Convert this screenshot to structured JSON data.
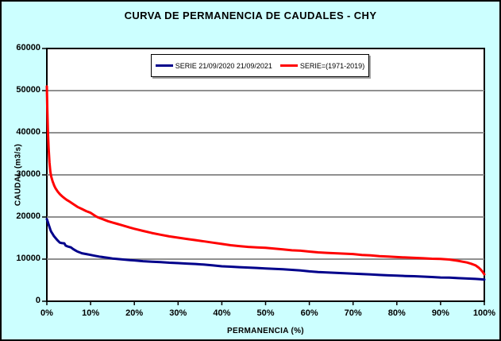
{
  "chart_data": {
    "type": "line",
    "title": "CURVA DE PERMANENCIA DE CAUDALES - CHY",
    "xlabel": "PERMANENCIA (%)",
    "ylabel": "CAUDAL (m3/s)",
    "xlim": [
      0,
      100
    ],
    "ylim": [
      0,
      60000
    ],
    "x_tick_labels": [
      "0%",
      "10%",
      "20%",
      "30%",
      "40%",
      "50%",
      "60%",
      "70%",
      "80%",
      "90%",
      "100%"
    ],
    "y_ticks": [
      0,
      10000,
      20000,
      30000,
      40000,
      50000,
      60000
    ],
    "grid": "horizontal",
    "gridline_color": "#808080",
    "legend_position": "top-center",
    "background_color": "#ccffff",
    "plot_background_color": "#ffffff",
    "series": [
      {
        "name": "SERIE 21/09/2020 21/09/2021",
        "color": "#00008b",
        "points": [
          [
            0,
            19500
          ],
          [
            0.2,
            18900
          ],
          [
            0.5,
            17900
          ],
          [
            0.8,
            17000
          ],
          [
            1,
            16500
          ],
          [
            1.3,
            16000
          ],
          [
            1.6,
            15500
          ],
          [
            2,
            15000
          ],
          [
            2.4,
            14500
          ],
          [
            2.8,
            14100
          ],
          [
            3,
            13900
          ],
          [
            3.5,
            13800
          ],
          [
            4,
            13750
          ],
          [
            4.3,
            13200
          ],
          [
            4.8,
            13000
          ],
          [
            5,
            12950
          ],
          [
            5.5,
            12800
          ],
          [
            6,
            12400
          ],
          [
            6.5,
            12100
          ],
          [
            7,
            11800
          ],
          [
            7.5,
            11600
          ],
          [
            8,
            11400
          ],
          [
            9,
            11200
          ],
          [
            10,
            11000
          ],
          [
            11,
            10800
          ],
          [
            12,
            10600
          ],
          [
            13,
            10450
          ],
          [
            14,
            10300
          ],
          [
            15,
            10150
          ],
          [
            16,
            10050
          ],
          [
            17,
            9950
          ],
          [
            18,
            9850
          ],
          [
            19,
            9750
          ],
          [
            20,
            9700
          ],
          [
            22,
            9500
          ],
          [
            24,
            9400
          ],
          [
            26,
            9300
          ],
          [
            28,
            9150
          ],
          [
            30,
            9050
          ],
          [
            32,
            8950
          ],
          [
            34,
            8850
          ],
          [
            36,
            8700
          ],
          [
            38,
            8500
          ],
          [
            40,
            8300
          ],
          [
            42,
            8200
          ],
          [
            44,
            8100
          ],
          [
            46,
            8000
          ],
          [
            48,
            7900
          ],
          [
            50,
            7800
          ],
          [
            52,
            7700
          ],
          [
            54,
            7600
          ],
          [
            56,
            7450
          ],
          [
            58,
            7300
          ],
          [
            60,
            7100
          ],
          [
            62,
            6950
          ],
          [
            64,
            6850
          ],
          [
            66,
            6750
          ],
          [
            68,
            6650
          ],
          [
            70,
            6550
          ],
          [
            72,
            6450
          ],
          [
            74,
            6350
          ],
          [
            76,
            6250
          ],
          [
            78,
            6150
          ],
          [
            80,
            6100
          ],
          [
            82,
            6000
          ],
          [
            84,
            5950
          ],
          [
            86,
            5850
          ],
          [
            88,
            5750
          ],
          [
            90,
            5650
          ],
          [
            92,
            5600
          ],
          [
            94,
            5500
          ],
          [
            96,
            5400
          ],
          [
            98,
            5300
          ],
          [
            99,
            5250
          ],
          [
            100,
            5150
          ]
        ]
      },
      {
        "name": "SERIE=(1971-2019)",
        "color": "#ff0000",
        "points": [
          [
            0,
            51000
          ],
          [
            0.1,
            45500
          ],
          [
            0.25,
            40000
          ],
          [
            0.4,
            36500
          ],
          [
            0.6,
            33000
          ],
          [
            0.8,
            30800
          ],
          [
            1,
            29600
          ],
          [
            1.3,
            28500
          ],
          [
            1.7,
            27400
          ],
          [
            2,
            26800
          ],
          [
            2.5,
            26000
          ],
          [
            3,
            25400
          ],
          [
            3.5,
            24900
          ],
          [
            4,
            24500
          ],
          [
            4.5,
            24100
          ],
          [
            5,
            23800
          ],
          [
            6,
            23100
          ],
          [
            7,
            22400
          ],
          [
            8,
            21900
          ],
          [
            9,
            21400
          ],
          [
            10,
            21000
          ],
          [
            11,
            20300
          ],
          [
            11.5,
            20000
          ],
          [
            12,
            19800
          ],
          [
            13,
            19400
          ],
          [
            14,
            19000
          ],
          [
            15,
            18700
          ],
          [
            16,
            18400
          ],
          [
            17,
            18100
          ],
          [
            18,
            17800
          ],
          [
            19,
            17500
          ],
          [
            20,
            17200
          ],
          [
            22,
            16700
          ],
          [
            24,
            16200
          ],
          [
            26,
            15800
          ],
          [
            28,
            15400
          ],
          [
            30,
            15100
          ],
          [
            32,
            14800
          ],
          [
            34,
            14500
          ],
          [
            36,
            14200
          ],
          [
            38,
            13900
          ],
          [
            40,
            13600
          ],
          [
            42,
            13300
          ],
          [
            44,
            13100
          ],
          [
            46,
            12900
          ],
          [
            48,
            12800
          ],
          [
            50,
            12700
          ],
          [
            52,
            12500
          ],
          [
            54,
            12300
          ],
          [
            56,
            12100
          ],
          [
            58,
            12000
          ],
          [
            60,
            11800
          ],
          [
            62,
            11600
          ],
          [
            64,
            11500
          ],
          [
            66,
            11400
          ],
          [
            68,
            11300
          ],
          [
            70,
            11200
          ],
          [
            72,
            11000
          ],
          [
            74,
            10900
          ],
          [
            76,
            10700
          ],
          [
            78,
            10600
          ],
          [
            80,
            10500
          ],
          [
            82,
            10400
          ],
          [
            84,
            10300
          ],
          [
            86,
            10200
          ],
          [
            88,
            10100
          ],
          [
            90,
            10050
          ],
          [
            92,
            9900
          ],
          [
            94,
            9600
          ],
          [
            95,
            9400
          ],
          [
            96,
            9200
          ],
          [
            97,
            8900
          ],
          [
            98,
            8500
          ],
          [
            98.7,
            8000
          ],
          [
            99.2,
            7500
          ],
          [
            99.6,
            7000
          ],
          [
            100,
            6400
          ]
        ]
      }
    ]
  }
}
